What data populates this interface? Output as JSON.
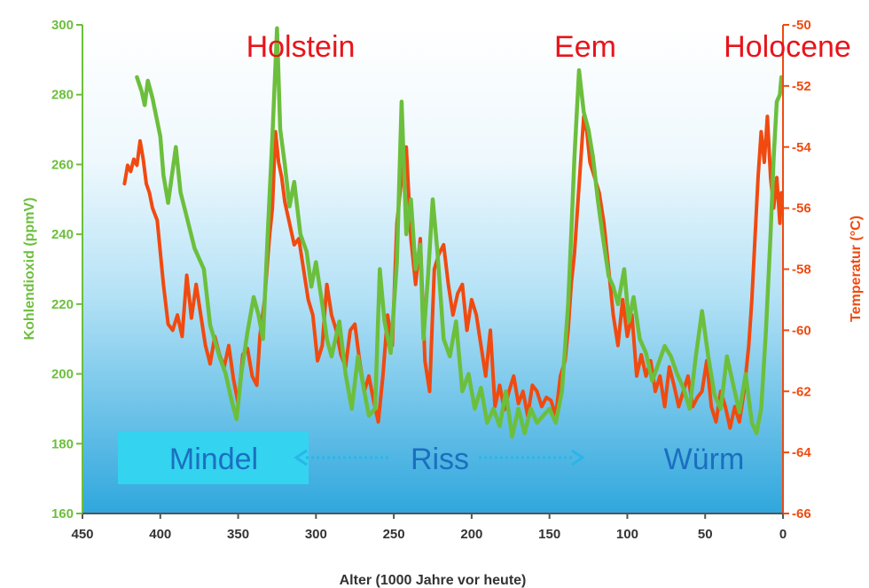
{
  "chart_data": {
    "type": "line",
    "xlabel": "Alter (1000 Jahre vor heute)",
    "ylabel_left": "Kohlendioxid (ppmV)",
    "ylabel_right": "Temperatur (°C)",
    "xlim": [
      450,
      0
    ],
    "ylim_left": [
      160,
      300
    ],
    "ylim_right": [
      -66,
      -50
    ],
    "x_ticks": [
      450,
      400,
      350,
      300,
      250,
      200,
      150,
      100,
      50,
      0
    ],
    "y_left_ticks": [
      160,
      180,
      200,
      220,
      240,
      260,
      280,
      300
    ],
    "y_right_ticks": [
      -66,
      -64,
      -62,
      -60,
      -58,
      -56,
      -54,
      -52,
      -50
    ],
    "colors": {
      "co2": "#6cbf3c",
      "temperature": "#f04a10",
      "left_axis": "#6cbf3c",
      "right_axis": "#f04a10",
      "period_text": "#e8141a",
      "stage_text": "#1b6fbf",
      "arrow": "#29b6e8",
      "mindel_box": "#34d3ef"
    },
    "period_labels": [
      "Holstein",
      "Eem",
      "Holocene"
    ],
    "stage_labels": [
      "Mindel",
      "Riss",
      "Würm"
    ],
    "series": [
      {
        "axis": "left",
        "color": "#6cbf3c",
        "x": [
          415,
          412,
          410,
          408,
          405,
          400,
          398,
          395,
          390,
          387,
          383,
          378,
          372,
          368,
          362,
          358,
          354,
          351,
          348,
          344,
          340,
          337,
          334,
          331,
          328,
          325,
          323,
          320,
          317,
          314,
          310,
          306,
          303,
          300,
          296,
          293,
          290,
          285,
          281,
          277,
          273,
          269,
          266,
          262,
          259,
          256,
          252,
          248,
          245,
          242,
          239,
          236,
          233,
          231,
          228,
          225,
          222,
          218,
          214,
          210,
          206,
          202,
          198,
          194,
          190,
          186,
          182,
          178,
          174,
          170,
          166,
          162,
          158,
          154,
          150,
          146,
          142,
          138,
          136,
          134,
          131,
          128,
          125,
          122,
          119,
          116,
          112,
          109,
          106,
          102,
          99,
          96,
          92,
          88,
          84,
          80,
          76,
          72,
          68,
          64,
          60,
          56,
          52,
          48,
          44,
          40,
          36,
          32,
          28,
          24,
          20,
          17,
          14,
          11,
          8,
          6,
          4,
          2,
          1
        ],
        "y": [
          285,
          281,
          277,
          284,
          279,
          268,
          257,
          249,
          265,
          252,
          245,
          236,
          230,
          214,
          205,
          200,
          192,
          187,
          200,
          212,
          222,
          217,
          210,
          240,
          268,
          299,
          270,
          260,
          248,
          255,
          240,
          235,
          225,
          232,
          220,
          210,
          205,
          215,
          200,
          190,
          205,
          195,
          188,
          190,
          230,
          215,
          206,
          232,
          278,
          240,
          250,
          230,
          237,
          210,
          228,
          250,
          235,
          210,
          205,
          215,
          195,
          200,
          190,
          196,
          186,
          190,
          185,
          195,
          182,
          190,
          183,
          190,
          186,
          188,
          190,
          186,
          195,
          220,
          240,
          262,
          287,
          275,
          270,
          262,
          250,
          240,
          228,
          225,
          220,
          230,
          215,
          222,
          210,
          206,
          198,
          203,
          208,
          205,
          200,
          196,
          190,
          205,
          218,
          205,
          194,
          190,
          205,
          197,
          189,
          200,
          186,
          183,
          190,
          212,
          240,
          262,
          278,
          280,
          285
        ]
      },
      {
        "axis": "right",
        "color": "#f04a10",
        "x": [
          423,
          421,
          419,
          417,
          415,
          413,
          411,
          409,
          407,
          405,
          402,
          398,
          395,
          392,
          389,
          386,
          383,
          380,
          377,
          374,
          371,
          368,
          365,
          362,
          359,
          356,
          353,
          350,
          347,
          344,
          341,
          338,
          336,
          333,
          330,
          328,
          326,
          324,
          322,
          320,
          317,
          314,
          311,
          308,
          305,
          302,
          299,
          296,
          293,
          290,
          287,
          284,
          281,
          278,
          275,
          272,
          269,
          266,
          263,
          260,
          257,
          254,
          251,
          248,
          245,
          242,
          239,
          236,
          233,
          230,
          227,
          224,
          221,
          218,
          215,
          212,
          209,
          206,
          203,
          200,
          197,
          194,
          191,
          188,
          185,
          182,
          179,
          176,
          173,
          170,
          167,
          164,
          161,
          158,
          155,
          152,
          149,
          146,
          143,
          140,
          138,
          136,
          134,
          132,
          130,
          128,
          126,
          124,
          121,
          118,
          115,
          112,
          109,
          106,
          103,
          100,
          97,
          94,
          91,
          88,
          85,
          82,
          79,
          76,
          73,
          70,
          67,
          64,
          61,
          58,
          55,
          52,
          49,
          46,
          43,
          40,
          37,
          34,
          31,
          28,
          25,
          22,
          20,
          18,
          16,
          14,
          12,
          10,
          8,
          6,
          4,
          2,
          1
        ],
        "y": [
          -55.2,
          -54.6,
          -54.8,
          -54.4,
          -54.6,
          -53.8,
          -54.4,
          -55.2,
          -55.5,
          -56.0,
          -56.4,
          -58.5,
          -59.8,
          -60.0,
          -59.5,
          -60.2,
          -58.2,
          -59.6,
          -58.5,
          -59.5,
          -60.5,
          -61.1,
          -60.2,
          -60.8,
          -61.2,
          -60.5,
          -61.6,
          -62.4,
          -60.8,
          -60.6,
          -61.5,
          -61.8,
          -60.2,
          -59.0,
          -57.0,
          -56.0,
          -53.5,
          -54.5,
          -55.0,
          -55.8,
          -56.5,
          -57.2,
          -57.0,
          -58.0,
          -59.0,
          -59.5,
          -61.0,
          -60.5,
          -58.5,
          -59.5,
          -60.0,
          -60.8,
          -61.2,
          -60.0,
          -59.8,
          -61.0,
          -62.0,
          -61.5,
          -62.3,
          -63.0,
          -61.5,
          -59.5,
          -60.5,
          -56.5,
          -55.0,
          -54.0,
          -57.0,
          -58.5,
          -57.0,
          -61.0,
          -62.0,
          -58.0,
          -57.5,
          -57.2,
          -58.5,
          -59.5,
          -58.8,
          -58.5,
          -60.0,
          -59.0,
          -59.5,
          -60.5,
          -61.5,
          -60.0,
          -62.5,
          -61.8,
          -62.6,
          -62.0,
          -61.5,
          -62.4,
          -62.0,
          -62.8,
          -61.8,
          -62.0,
          -62.5,
          -62.2,
          -62.3,
          -62.8,
          -61.5,
          -61.0,
          -60.0,
          -58.5,
          -57.5,
          -56.0,
          -54.5,
          -53.0,
          -53.5,
          -54.5,
          -55.0,
          -55.5,
          -56.5,
          -58.0,
          -59.5,
          -60.5,
          -59.0,
          -60.2,
          -59.5,
          -61.5,
          -60.8,
          -61.5,
          -61.0,
          -62.0,
          -61.5,
          -62.5,
          -61.2,
          -61.8,
          -62.5,
          -62.0,
          -61.5,
          -62.5,
          -62.2,
          -62.0,
          -61.0,
          -62.5,
          -63.0,
          -62.0,
          -62.5,
          -63.2,
          -62.5,
          -63.0,
          -62.0,
          -60.5,
          -59.0,
          -57.0,
          -55.0,
          -53.5,
          -54.5,
          -53.0,
          -55.0,
          -56.0,
          -55.0,
          -56.5,
          -55.5
        ]
      }
    ]
  }
}
